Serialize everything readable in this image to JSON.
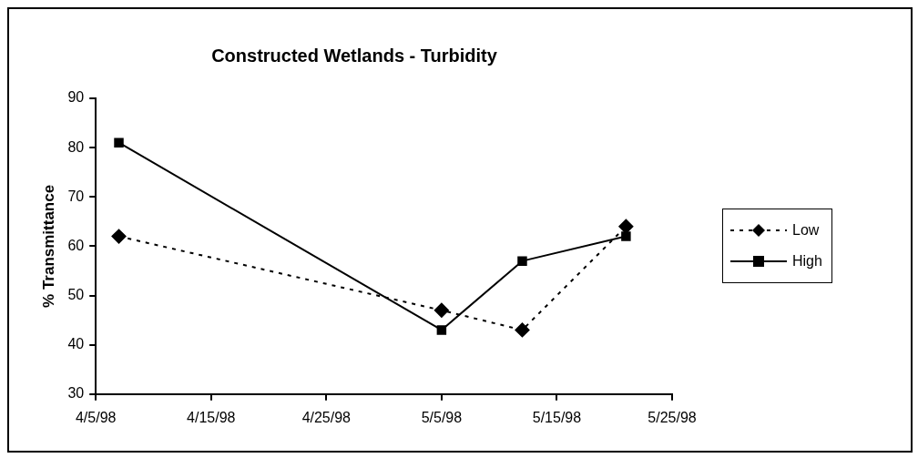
{
  "chart_data": {
    "type": "line",
    "title": "Constructed Wetlands - Turbidity",
    "ylabel": "% Transmittance",
    "x": [
      "1998-04-07",
      "1998-05-05",
      "1998-05-12",
      "1998-05-21"
    ],
    "series": [
      {
        "name": "Low",
        "color": "#000000",
        "values": [
          62,
          47,
          43,
          64
        ],
        "marker": "diamond",
        "line_style": "dotted"
      },
      {
        "name": "High",
        "color": "#000000",
        "values": [
          81,
          43,
          57,
          62
        ],
        "marker": "square",
        "line_style": "solid"
      }
    ],
    "xlim": [
      "1998-04-05",
      "1998-05-25"
    ],
    "xticks": [
      {
        "value": "1998-04-05",
        "label": "4/5/98"
      },
      {
        "value": "1998-04-15",
        "label": "4/15/98"
      },
      {
        "value": "1998-04-25",
        "label": "4/25/98"
      },
      {
        "value": "1998-05-05",
        "label": "5/5/98"
      },
      {
        "value": "1998-05-15",
        "label": "5/15/98"
      },
      {
        "value": "1998-05-25",
        "label": "5/25/98"
      }
    ],
    "ylim": [
      30,
      90
    ],
    "yticks": [
      30,
      40,
      50,
      60,
      70,
      80,
      90
    ],
    "grid": false,
    "legend": "right"
  }
}
